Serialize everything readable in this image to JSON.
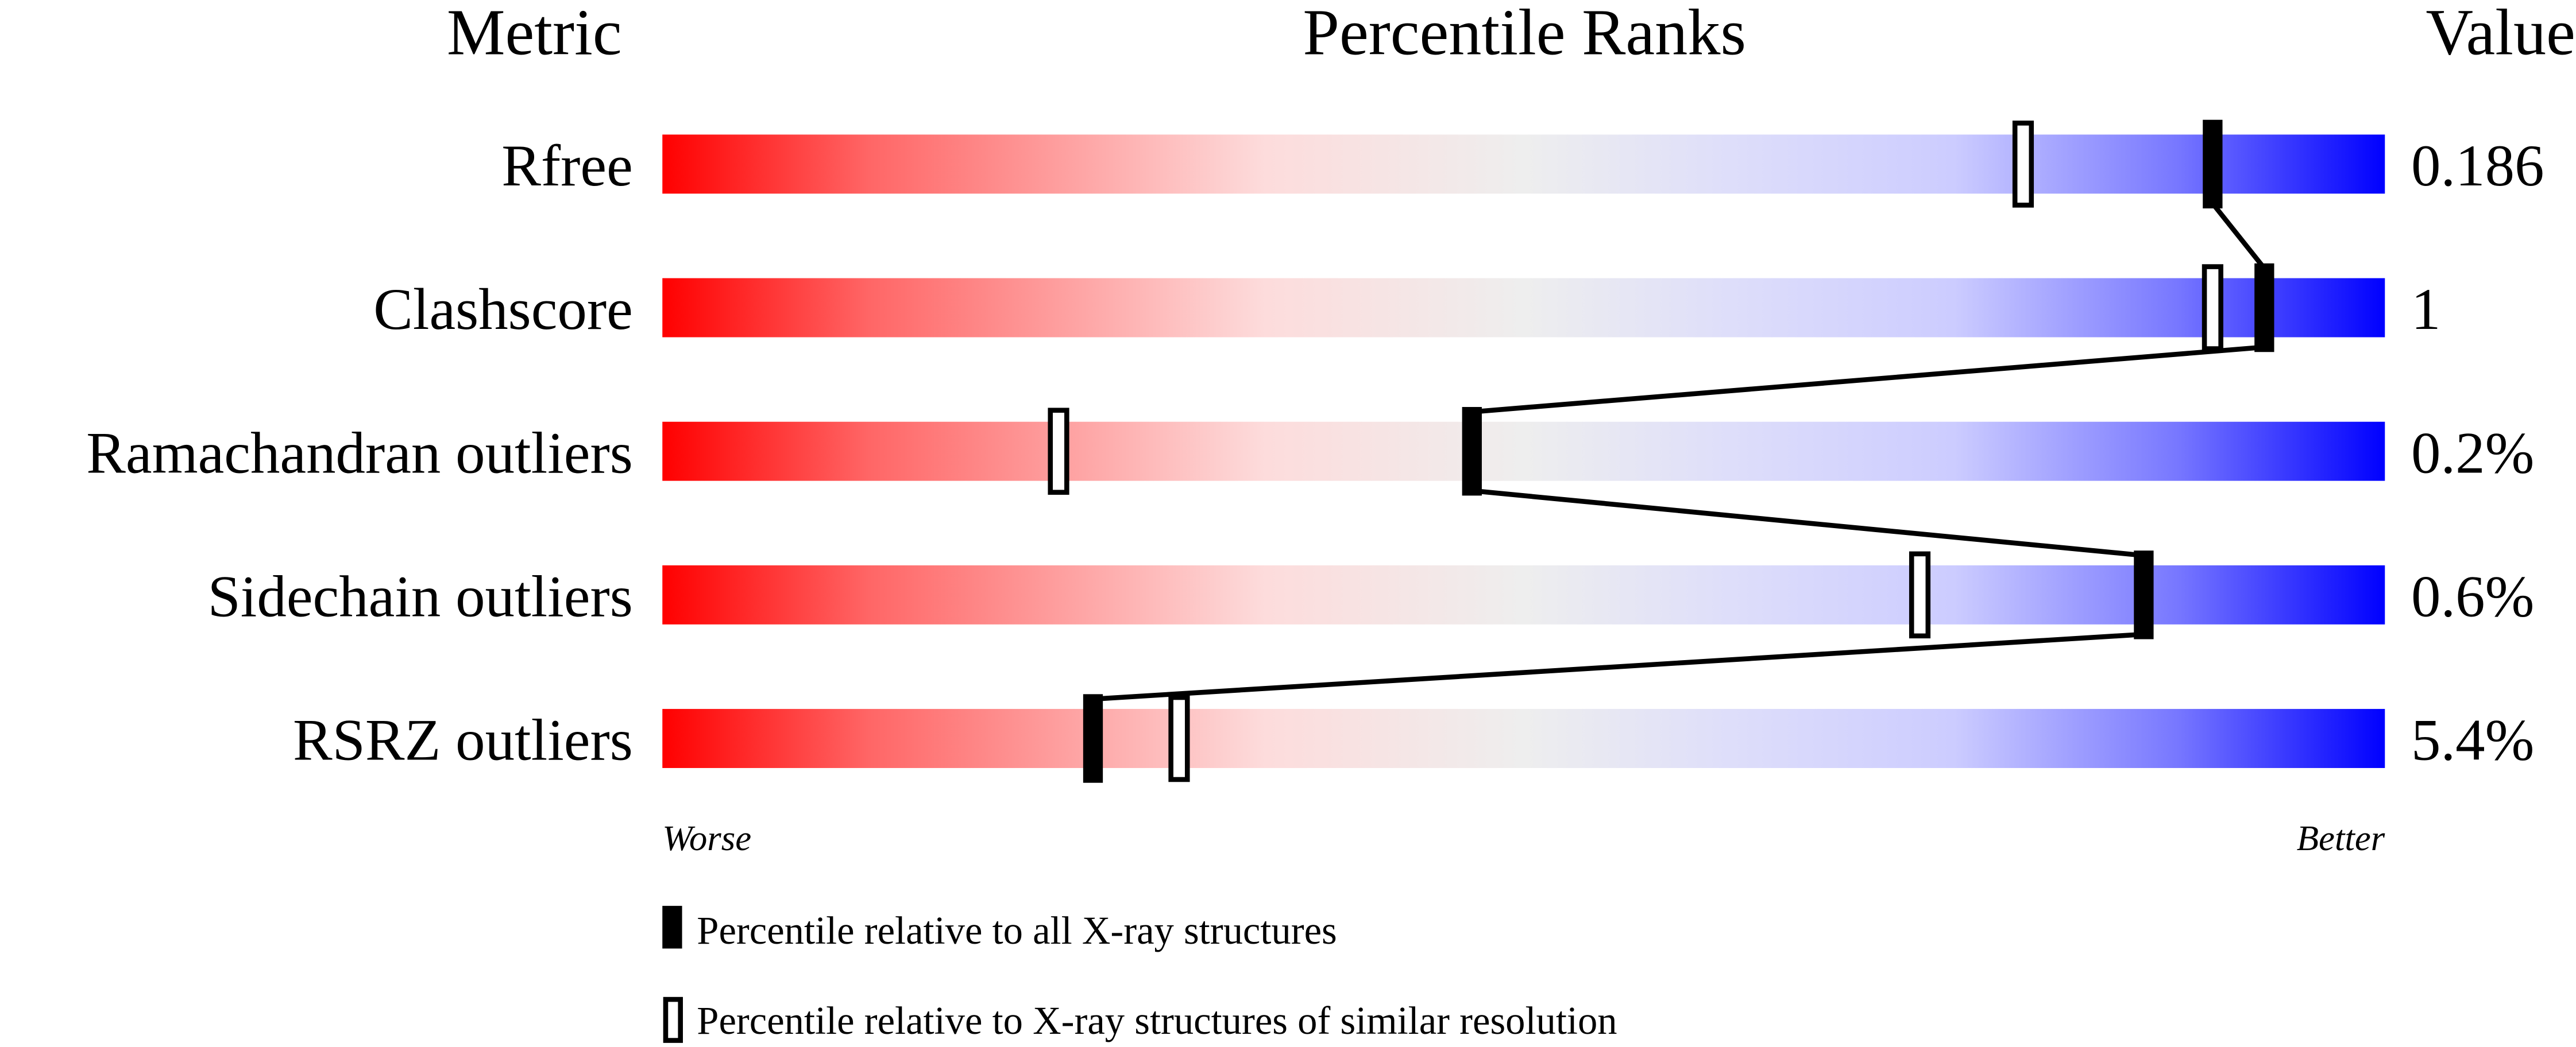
{
  "chart_data": {
    "type": "bar",
    "headers": {
      "metric": "Metric",
      "ranks": "Percentile Ranks",
      "value": "Value"
    },
    "metrics": [
      {
        "name": "Rfree",
        "value": "0.186",
        "percentile_all": 90,
        "percentile_similar": 79
      },
      {
        "name": "Clashscore",
        "value": "1",
        "percentile_all": 93,
        "percentile_similar": 90
      },
      {
        "name": "Ramachandran outliers",
        "value": "0.2%",
        "percentile_all": 47,
        "percentile_similar": 23
      },
      {
        "name": "Sidechain outliers",
        "value": "0.6%",
        "percentile_all": 86,
        "percentile_similar": 73
      },
      {
        "name": "RSRZ outliers",
        "value": "5.4%",
        "percentile_all": 25,
        "percentile_similar": 30
      }
    ],
    "axis": {
      "worse": "Worse",
      "better": "Better",
      "range": [
        0,
        100
      ]
    },
    "legend": {
      "all": "Percentile relative to all X-ray structures",
      "similar": "Percentile relative to X-ray structures of similar resolution"
    },
    "colors": {
      "worse": "#ff0000",
      "middle": "#eeeeee",
      "better": "#0000ff",
      "marker": "#000000"
    }
  }
}
